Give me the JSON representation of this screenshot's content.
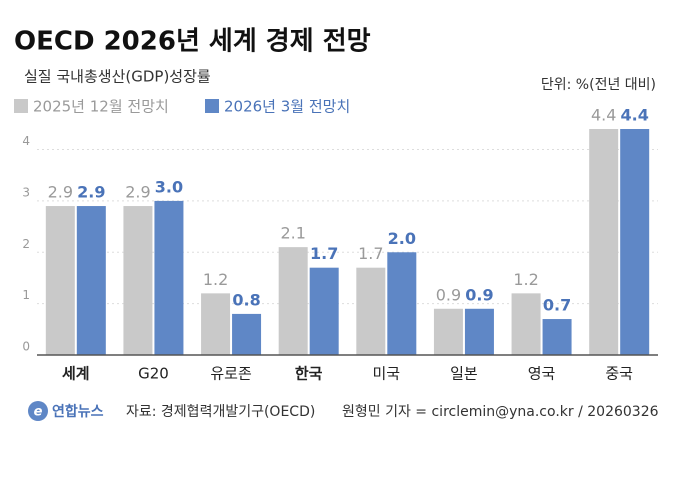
{
  "chart_data": {
    "type": "bar",
    "title": "OECD 2026년 세계 경제 전망",
    "subtitle": "실질 국내총생산(GDP)성장률",
    "unit": "단위: %(전년 대비)",
    "categories": [
      "세계",
      "G20",
      "유로존",
      "한국",
      "미국",
      "일본",
      "영국",
      "중국"
    ],
    "series": [
      {
        "name": "2025년 12월 전망치",
        "color": "#c9c9c9",
        "label_color": "#9a9a9a",
        "values": [
          2.9,
          2.9,
          1.2,
          2.1,
          1.7,
          0.9,
          1.2,
          4.4
        ],
        "value_labels": [
          "2.9",
          "2.9",
          "1.2",
          "2.1",
          "1.7",
          "0.9",
          "1.2",
          "4.4"
        ]
      },
      {
        "name": "2026년 3월 전망치",
        "color": "#5f87c6",
        "label_color": "#4a73b8",
        "values": [
          2.9,
          3.0,
          0.8,
          1.7,
          2.0,
          0.9,
          0.7,
          4.4
        ],
        "value_labels": [
          "2.9",
          "3.0",
          "0.8",
          "1.7",
          "2.0",
          "0.9",
          "0.7",
          "4.4"
        ]
      }
    ],
    "ylim": [
      0,
      4.4
    ],
    "yticks": [
      0,
      1,
      2,
      3,
      4
    ],
    "grid": true,
    "logo": "연합뉴스",
    "source": "자료: 경제협력개발기구(OECD)",
    "credit": "원형민 기자 = circlemin@yna.co.kr / 20260326"
  }
}
